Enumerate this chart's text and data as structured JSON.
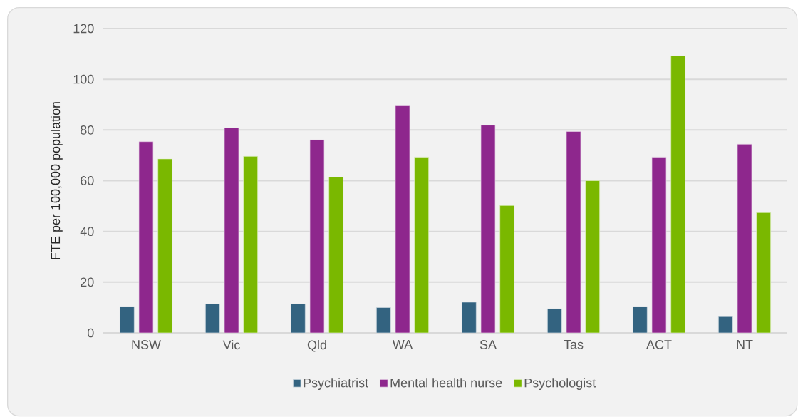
{
  "chart_data": {
    "type": "bar",
    "ylabel": "FTE per 100,000 population",
    "categories": [
      "NSW",
      "Vic",
      "Qld",
      "WA",
      "SA",
      "Tas",
      "ACT",
      "NT"
    ],
    "series": [
      {
        "name": "Psychiatrist",
        "color": "#336380",
        "values": [
          10.4,
          11.4,
          11.4,
          10.0,
          12.1,
          9.5,
          10.4,
          6.4
        ]
      },
      {
        "name": "Mental health nurse",
        "color": "#8e278d",
        "values": [
          75.4,
          80.8,
          76.1,
          89.5,
          81.9,
          79.4,
          69.3,
          74.4
        ]
      },
      {
        "name": "Psychologist",
        "color": "#7ab800",
        "values": [
          68.6,
          69.6,
          61.4,
          69.3,
          50.2,
          60.0,
          109.2,
          47.4
        ]
      }
    ],
    "ylim": [
      0,
      120
    ],
    "yticks": [
      0,
      20,
      40,
      60,
      80,
      100,
      120
    ],
    "grid": "y",
    "legend": "bottom"
  }
}
